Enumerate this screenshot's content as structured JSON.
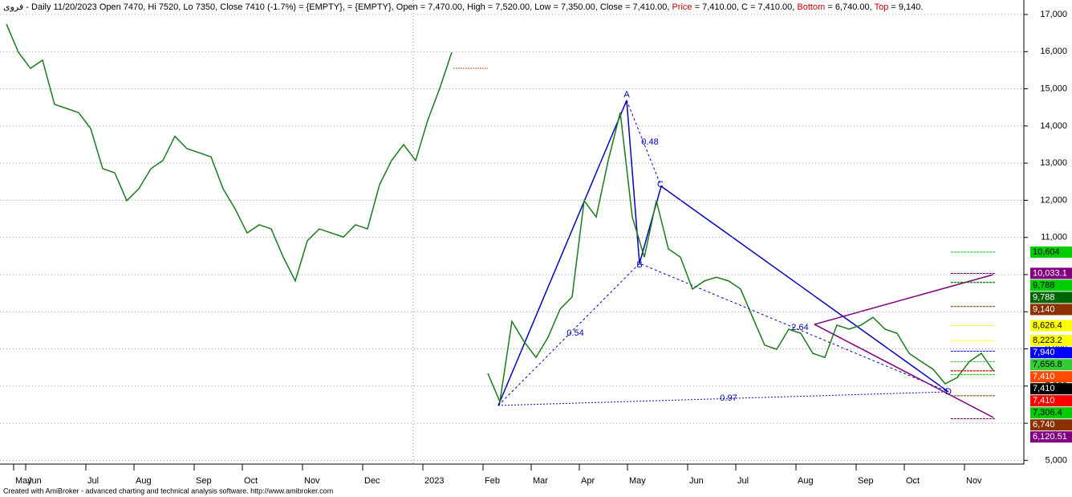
{
  "chart_data": {
    "type": "line",
    "header": [
      {
        "text": "فروی - Daily 11/20/2023 Open 7470, Hi 7520, Lo 7350, Close 7410 (-1.7%)   = {EMPTY},   = {EMPTY}, Open = 7,470.00, High = 7,520.00, Low = 7,350.00, Close = 7,410.00, ",
        "color": "#000000"
      },
      {
        "text": "Price",
        "color": "#cc0000"
      },
      {
        "text": " = 7,410.00, C = 7,410.00, ",
        "color": "#000000"
      },
      {
        "text": "Bottom",
        "color": "#cc0000"
      },
      {
        "text": " = 6,740.00, ",
        "color": "#000000"
      },
      {
        "text": "Top",
        "color": "#cc0000"
      },
      {
        "text": " = 9,140.",
        "color": "#000000"
      }
    ],
    "footer": "Created with AmiBroker - advanced charting and technical analysis software. http://www.amibroker.com",
    "categories": [
      null,
      "May",
      "Jun",
      null,
      null,
      null,
      null,
      "Jul",
      null,
      null,
      null,
      "Aug",
      null,
      null,
      null,
      null,
      "Sep",
      null,
      null,
      null,
      "Oct",
      null,
      null,
      null,
      null,
      "Nov",
      null,
      null,
      null,
      null,
      "Dec",
      null,
      null,
      null,
      null,
      "2023",
      null,
      null,
      null,
      null,
      "Feb",
      null,
      null,
      null,
      "Mar",
      null,
      null,
      null,
      "Apr",
      null,
      null,
      null,
      "May",
      null,
      null,
      null,
      null,
      "Jun",
      null,
      null,
      null,
      "Jul",
      null,
      null,
      null,
      null,
      "Aug",
      null,
      null,
      null,
      null,
      "Sep",
      null,
      null,
      null,
      "Oct",
      null,
      null,
      null,
      null,
      "Nov",
      null,
      null
    ],
    "values": [
      16740,
      15980,
      15550,
      15770,
      14580,
      14470,
      14360,
      13930,
      12850,
      12740,
      11990,
      12310,
      12850,
      13070,
      13720,
      13390,
      13280,
      13170,
      12310,
      11770,
      11120,
      11340,
      11230,
      10470,
      9830,
      10910,
      11230,
      11120,
      11010,
      11340,
      11230,
      12420,
      13070,
      13500,
      13070,
      14150,
      15010,
      15980,
      null,
      null,
      7340,
      6580,
      8740,
      8200,
      7770,
      8310,
      9070,
      9400,
      11990,
      11550,
      13070,
      14360,
      11550,
      10470,
      11990,
      10690,
      10470,
      9610,
      9830,
      9930,
      9830,
      9610,
      8850,
      8100,
      7990,
      8530,
      8420,
      7880,
      7770,
      8640,
      8530,
      8640,
      8850,
      8530,
      8420,
      7880,
      7660,
      7450,
      7060,
      7230,
      7660,
      7880,
      7410
    ],
    "color": "#1a7a1a",
    "ylim": [
      4900,
      17390
    ],
    "yticks": [
      {
        "value": 5000,
        "label": "5,000"
      },
      {
        "value": 6000,
        "label": "6,000"
      },
      {
        "value": 7000,
        "label": "7,000"
      },
      {
        "value": 8000,
        "label": "8,000"
      },
      {
        "value": 9000,
        "label": "9,000"
      },
      {
        "value": 10000,
        "label": "10,000"
      },
      {
        "value": 11000,
        "label": "11,000"
      },
      {
        "value": 12000,
        "label": "12,000"
      },
      {
        "value": 13000,
        "label": "13,000"
      },
      {
        "value": 14000,
        "label": "14,000"
      },
      {
        "value": 15000,
        "label": "15,000"
      },
      {
        "value": 16000,
        "label": "16,000"
      },
      {
        "value": 17000,
        "label": "17,000"
      }
    ],
    "grid": true,
    "annotations": [
      "A",
      "B",
      "C",
      "D",
      "0.48",
      "0.54",
      "2.64",
      "0.97"
    ],
    "price_labels": [
      {
        "value": 10604,
        "label": "10,604",
        "color": "#00cc00",
        "text_color": "#000000"
      },
      {
        "value": 10033.1,
        "label": "10,033.1",
        "color": "#800080",
        "text_color": "#ffffff"
      },
      {
        "value": 9788,
        "label": "9,788",
        "color": "#00cc00",
        "text_color": "#000000"
      },
      {
        "value": 9788,
        "label": "9,788",
        "color": "#006400",
        "text_color": "#ffffff"
      },
      {
        "value": 9140,
        "label": "9,140",
        "color": "#8b3000",
        "text_color": "#ffffff"
      },
      {
        "value": 8626.4,
        "label": "8,626.4",
        "color": "#ffff00",
        "text_color": "#000000"
      },
      {
        "value": 8223.2,
        "label": "8,223.2",
        "color": "#ffff00",
        "text_color": "#000000"
      },
      {
        "value": 7940,
        "label": "7,940",
        "color": "#0000ff",
        "text_color": "#ffffff"
      },
      {
        "value": 7656.8,
        "label": "7,656.8",
        "color": "#33cc33",
        "text_color": "#000000"
      },
      {
        "value": 7410,
        "label": "7,410",
        "color": "#ff4a00",
        "text_color": "#ffffff"
      },
      {
        "value": 7410,
        "label": "7,410",
        "color": "#000000",
        "text_color": "#ffffff"
      },
      {
        "value": 7410,
        "label": "7,410",
        "color": "#ff0000",
        "text_color": "#ffffff"
      },
      {
        "value": 7306.4,
        "label": "7,306.4",
        "color": "#00cc00",
        "text_color": "#000000"
      },
      {
        "value": 6740,
        "label": "6,740",
        "color": "#8b3000",
        "text_color": "#ffffff"
      },
      {
        "value": 6120.51,
        "label": "6,120.51",
        "color": "#800080",
        "text_color": "#ffffff"
      }
    ]
  }
}
